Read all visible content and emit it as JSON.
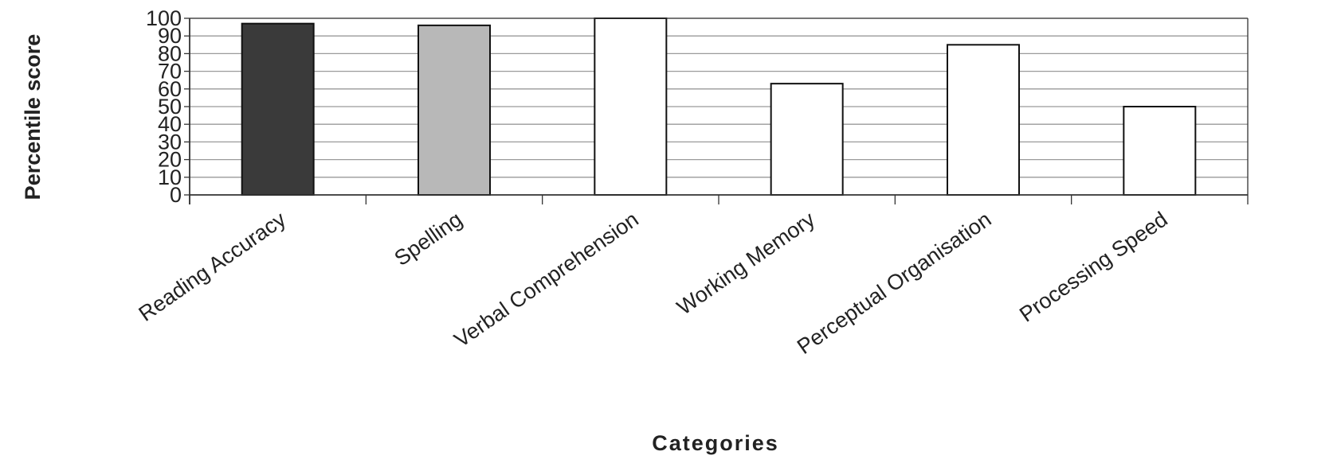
{
  "chart_data": {
    "type": "bar",
    "title": "",
    "xlabel": "Categories",
    "ylabel": "Percentile score",
    "categories": [
      "Reading Accuracy",
      "Spelling",
      "Verbal Comprehension",
      "Working Memory",
      "Perceptual Organisation",
      "Processing Speed"
    ],
    "values": [
      97,
      96,
      100,
      63,
      85,
      50
    ],
    "ylim": [
      0,
      100
    ],
    "yticks": [
      0,
      10,
      20,
      30,
      40,
      50,
      60,
      70,
      80,
      90,
      100
    ],
    "grid": true,
    "legend": "none",
    "colors": {
      "bars": [
        "#3a3a3a",
        "#b8b8b8",
        "#ffffff",
        "#ffffff",
        "#ffffff",
        "#ffffff"
      ],
      "bar_stroke": "#111111",
      "grid": "#9a9a9a",
      "axis": "#333333",
      "text": "#222222"
    }
  }
}
